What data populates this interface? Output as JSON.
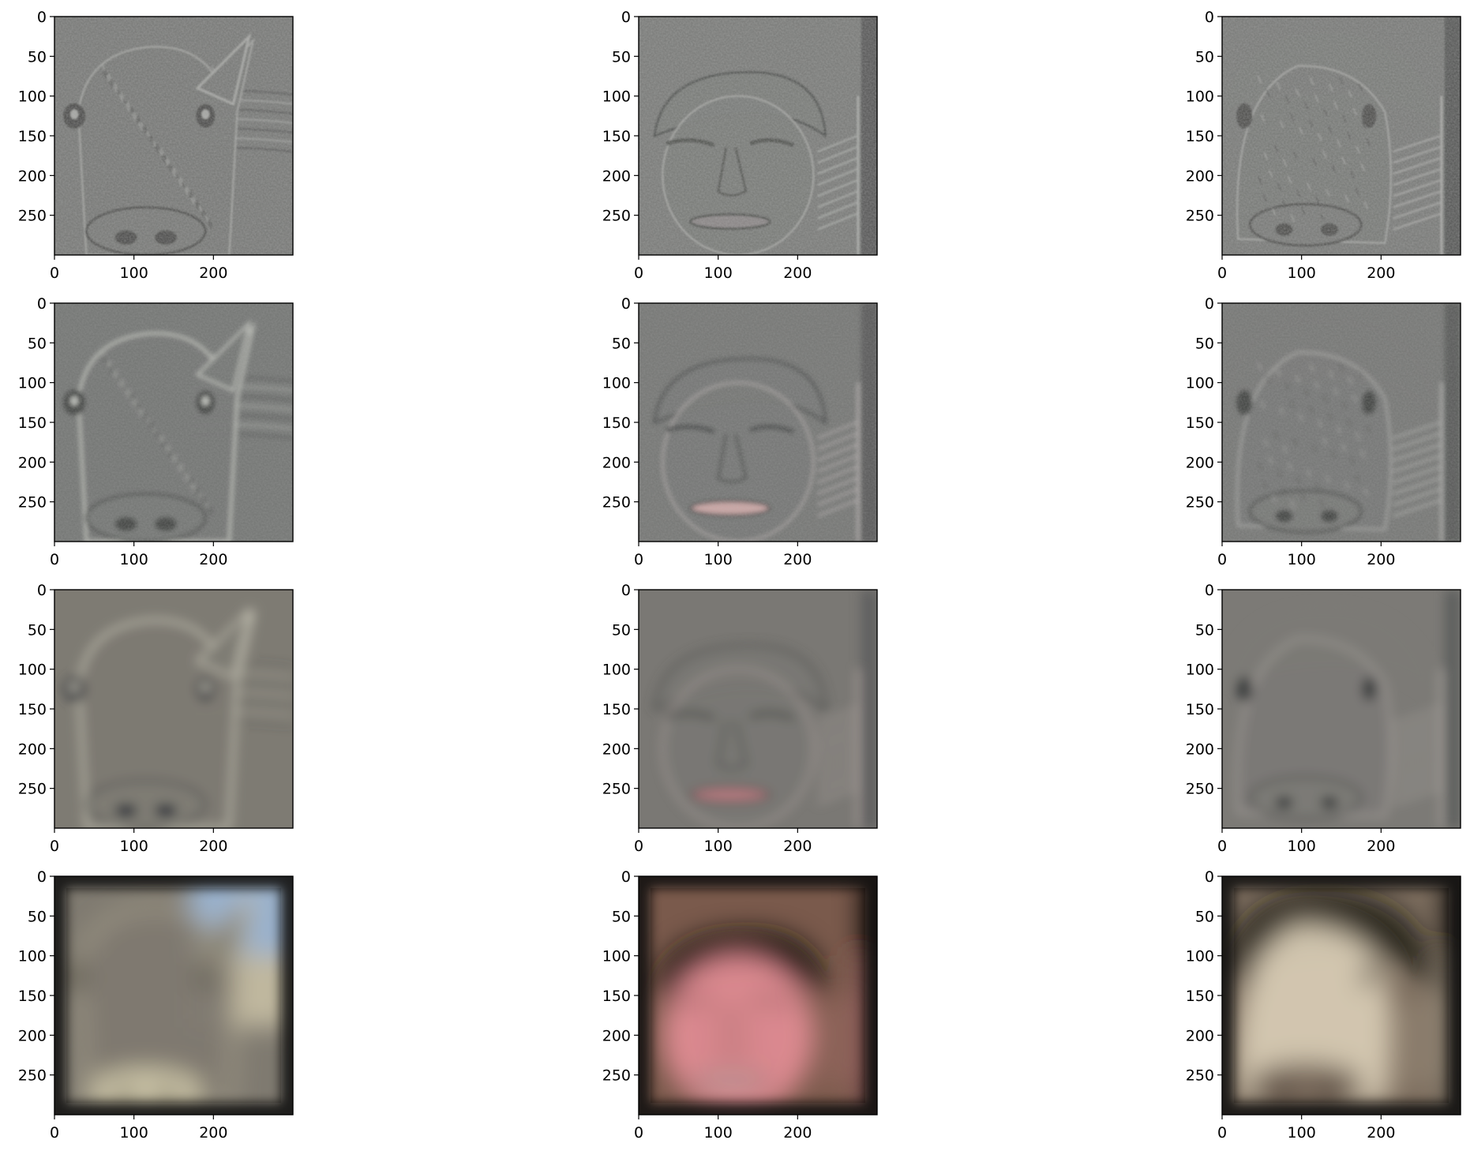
{
  "chart_data": {
    "type": "image_grid",
    "rows": 4,
    "cols": 3,
    "image_extent": {
      "x": [
        0,
        300
      ],
      "y": [
        0,
        300
      ]
    },
    "x_ticks": [
      "0",
      "100",
      "200"
    ],
    "y_ticks": [
      "0",
      "50",
      "100",
      "150",
      "200",
      "250"
    ],
    "panels": [
      {
        "row": 0,
        "col": 0,
        "subject": "goat",
        "band": "high-frequency",
        "palette": {
          "base": "#7d7e7c",
          "light": "#a7a8a5",
          "dark": "#565755",
          "accent": "#8a8c88"
        }
      },
      {
        "row": 0,
        "col": 1,
        "subject": "face",
        "band": "high-frequency",
        "palette": {
          "base": "#7f807e",
          "light": "#a9aaa7",
          "dark": "#5a5b59",
          "accent": "#8e8a8a"
        }
      },
      {
        "row": 0,
        "col": 2,
        "subject": "hybrid",
        "band": "high-frequency",
        "palette": {
          "base": "#7e7f7d",
          "light": "#a8a9a6",
          "dark": "#585957",
          "accent": "#8b8c89"
        }
      },
      {
        "row": 1,
        "col": 0,
        "subject": "goat",
        "band": "mid-high",
        "palette": {
          "base": "#787a78",
          "light": "#b6b8b2",
          "dark": "#4b4d4c",
          "accent": "#a6a081"
        }
      },
      {
        "row": 1,
        "col": 1,
        "subject": "face",
        "band": "mid-high",
        "palette": {
          "base": "#7a7b79",
          "light": "#b9b3b2",
          "dark": "#4a4c4b",
          "accent": "#c9a7a6"
        }
      },
      {
        "row": 1,
        "col": 2,
        "subject": "hybrid",
        "band": "mid-high",
        "palette": {
          "base": "#7a7b79",
          "light": "#b3b3b0",
          "dark": "#4c4d4c",
          "accent": "#b9a3a0"
        }
      },
      {
        "row": 2,
        "col": 0,
        "subject": "goat",
        "band": "mid-low",
        "palette": {
          "base": "#7e7b73",
          "light": "#c7c4b6",
          "dark": "#3e3f44",
          "accent": "#c4b48c"
        }
      },
      {
        "row": 2,
        "col": 1,
        "subject": "face",
        "band": "mid-low",
        "palette": {
          "base": "#7a7874",
          "light": "#bfb2ae",
          "dark": "#3d3f3e",
          "accent": "#b77d82"
        }
      },
      {
        "row": 2,
        "col": 2,
        "subject": "hybrid",
        "band": "mid-low",
        "palette": {
          "base": "#7c7a76",
          "light": "#bdb7b1",
          "dark": "#3e3f41",
          "accent": "#c9a09b"
        }
      },
      {
        "row": 3,
        "col": 0,
        "subject": "goat",
        "band": "low-frequency",
        "palette": {
          "base": "#7f7a70",
          "light": "#cfc7aa",
          "dark": "#1e1b19",
          "accent": "#9bb8d8"
        }
      },
      {
        "row": 3,
        "col": 1,
        "subject": "face",
        "band": "low-frequency",
        "palette": {
          "base": "#7a5a4c",
          "light": "#e08c93",
          "dark": "#1a1412",
          "accent": "#c9a6a5"
        }
      },
      {
        "row": 3,
        "col": 2,
        "subject": "hybrid",
        "band": "low-frequency",
        "palette": {
          "base": "#7b6c5d",
          "light": "#d6cbb4",
          "dark": "#1c1614",
          "accent": "#8d5a3a"
        }
      }
    ]
  }
}
